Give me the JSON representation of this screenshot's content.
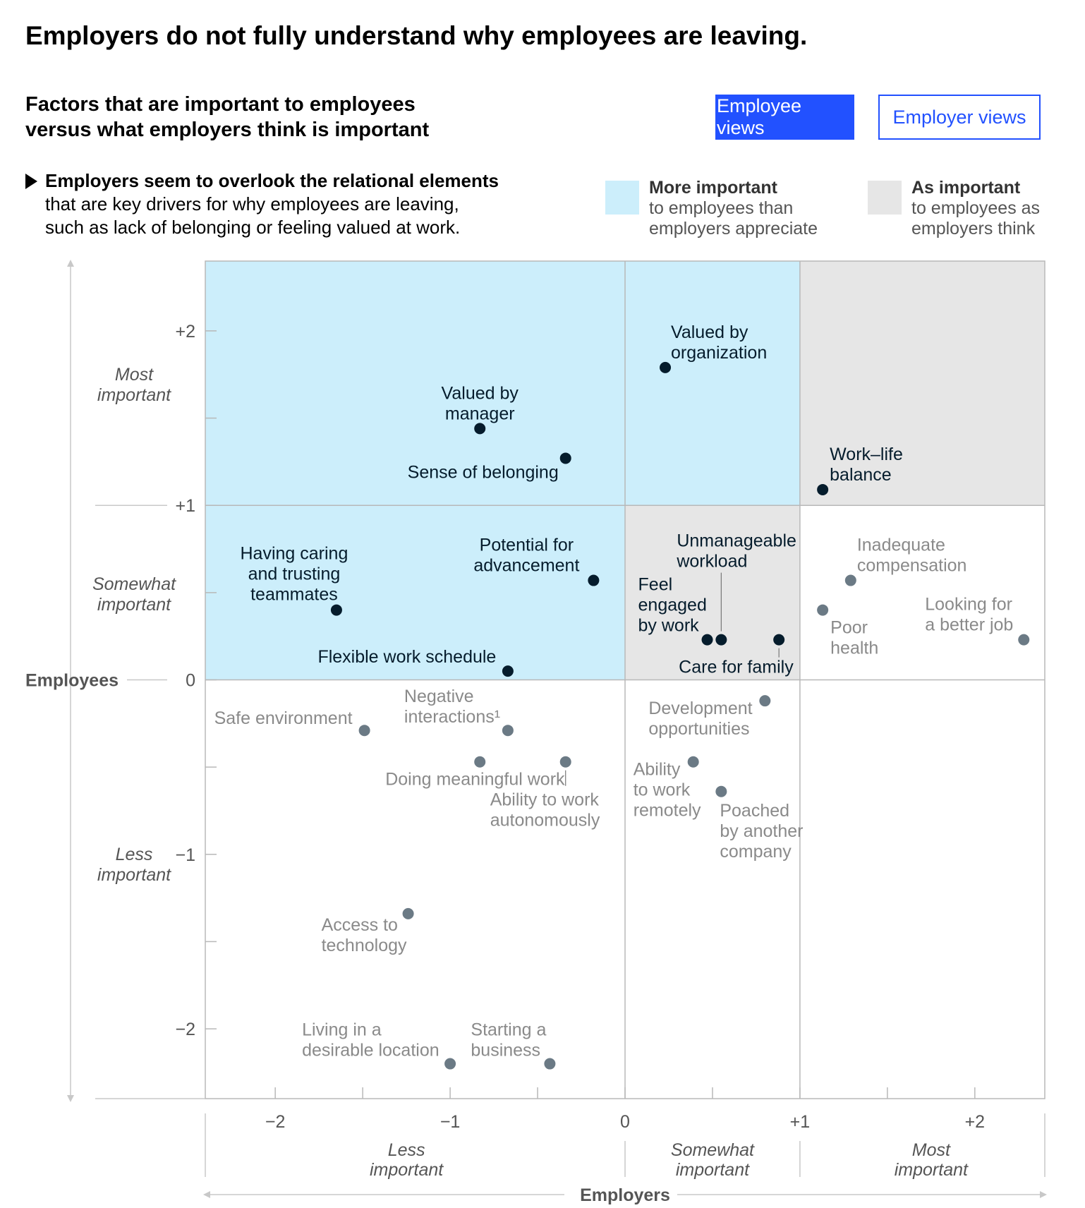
{
  "title": "Employers do not fully understand why employees are leaving.",
  "subtitle": {
    "line1": "Factors that are important to employees",
    "line2": "versus what employers think is important"
  },
  "toggle": {
    "employee_label": "Employee views",
    "employer_label": "Employer views",
    "active": "employee"
  },
  "insight": {
    "headline": "Employers seem to overlook the relational elements",
    "line2": "that are key drivers for why employees are leaving,",
    "line3": "such as lack of belonging or feeling valued at work."
  },
  "legend": {
    "more": {
      "title": "More important",
      "line1": "to employees than",
      "line2": "employers appreciate",
      "color": "#cceefb"
    },
    "as": {
      "title": "As important",
      "line1": "to employees as",
      "line2": "employers think",
      "color": "#e6e6e6"
    }
  },
  "colors": {
    "highlight_dot": "#051c2c",
    "muted_dot": "#6b7a85",
    "highlight_text": "#051c2c",
    "muted_text": "#8a8a8a",
    "grid": "#b8b8b8",
    "axis_text": "#555555"
  },
  "chart_data": {
    "type": "scatter",
    "xlabel": "Employers",
    "ylabel": "Employees",
    "xlim": [
      -2.4,
      2.4
    ],
    "ylim": [
      -2.4,
      2.4
    ],
    "x_ticks": [
      {
        "value": -2,
        "label": "−2"
      },
      {
        "value": -1,
        "label": "−1"
      },
      {
        "value": 0,
        "label": "0"
      },
      {
        "value": 1,
        "label": "+1"
      },
      {
        "value": 2,
        "label": "+2"
      }
    ],
    "y_ticks": [
      {
        "value": 2,
        "label": "+2"
      },
      {
        "value": 1,
        "label": "+1"
      },
      {
        "value": 0,
        "label": "0"
      },
      {
        "value": -1,
        "label": "−1"
      },
      {
        "value": -2,
        "label": "−2"
      }
    ],
    "x_categories": [
      {
        "line1": "Less",
        "line2": "important",
        "center": -1.25
      },
      {
        "line1": "Somewhat",
        "line2": "important",
        "center": 0.5
      },
      {
        "line1": "Most",
        "line2": "important",
        "center": 1.75
      }
    ],
    "y_categories": [
      {
        "line1": "Most",
        "line2": "important",
        "center": 1.7
      },
      {
        "line1": "Somewhat",
        "line2": "important",
        "center": 0.5
      },
      {
        "line1": "Less",
        "line2": "important",
        "center": -1.05
      }
    ],
    "regions": [
      {
        "x0": -2.4,
        "x1": 0,
        "y0": 0,
        "y1": 2.4,
        "kind": "more"
      },
      {
        "x0": 0,
        "x1": 1,
        "y0": 1,
        "y1": 2.4,
        "kind": "more"
      },
      {
        "x0": 0,
        "x1": 1,
        "y0": 0,
        "y1": 1,
        "kind": "as"
      },
      {
        "x0": 1,
        "x1": 2.4,
        "y0": 1,
        "y1": 2.4,
        "kind": "as"
      }
    ],
    "points": [
      {
        "label": [
          "Valued by",
          "organization"
        ],
        "x": 0.23,
        "y": 1.79,
        "highlight": true
      },
      {
        "label": [
          "Valued by",
          "manager"
        ],
        "x": -0.83,
        "y": 1.44,
        "highlight": true
      },
      {
        "label": [
          "Sense of belonging"
        ],
        "x": -0.34,
        "y": 1.27,
        "highlight": true
      },
      {
        "label": [
          "Work–life",
          "balance"
        ],
        "x": 1.13,
        "y": 1.09,
        "highlight": true
      },
      {
        "label": [
          "Potential for",
          "advancement"
        ],
        "x": -0.18,
        "y": 0.57,
        "highlight": true
      },
      {
        "label": [
          "Having caring",
          "and trusting",
          "teammates"
        ],
        "x": -1.65,
        "y": 0.4,
        "highlight": true
      },
      {
        "label": [
          "Flexible work schedule"
        ],
        "x": -0.67,
        "y": 0.05,
        "highlight": true
      },
      {
        "label": [
          "Unmanageable",
          "workload"
        ],
        "x": 0.55,
        "y": 0.23,
        "highlight": true
      },
      {
        "label": [
          "Feel",
          "engaged",
          "by work"
        ],
        "x": 0.47,
        "y": 0.23,
        "highlight": true
      },
      {
        "label": [
          "Care for family"
        ],
        "x": 0.88,
        "y": 0.23,
        "highlight": true
      },
      {
        "label": [
          "Inadequate",
          "compensation"
        ],
        "x": 1.29,
        "y": 0.57,
        "highlight": false
      },
      {
        "label": [
          "Poor",
          "health"
        ],
        "x": 1.13,
        "y": 0.4,
        "highlight": false
      },
      {
        "label": [
          "Looking for",
          "a better job"
        ],
        "x": 2.28,
        "y": 0.23,
        "highlight": false
      },
      {
        "label": [
          "Safe environment"
        ],
        "x": -1.49,
        "y": -0.29,
        "highlight": false
      },
      {
        "label": [
          "Negative",
          "interactions¹"
        ],
        "x": -0.67,
        "y": -0.29,
        "highlight": false
      },
      {
        "label": [
          "Doing meaningful work"
        ],
        "x": -0.83,
        "y": -0.47,
        "highlight": false
      },
      {
        "label": [
          "Ability to work",
          "autonomously"
        ],
        "x": -0.34,
        "y": -0.47,
        "highlight": false
      },
      {
        "label": [
          "Development",
          "opportunities"
        ],
        "x": 0.8,
        "y": -0.12,
        "highlight": false
      },
      {
        "label": [
          "Ability",
          "to work",
          "remotely"
        ],
        "x": 0.39,
        "y": -0.47,
        "highlight": false
      },
      {
        "label": [
          "Poached",
          "by another",
          "company"
        ],
        "x": 0.55,
        "y": -0.64,
        "highlight": false
      },
      {
        "label": [
          "Access to",
          "technology"
        ],
        "x": -1.24,
        "y": -1.34,
        "highlight": false
      },
      {
        "label": [
          "Living in a",
          "desirable location"
        ],
        "x": -1.0,
        "y": -2.2,
        "highlight": false
      },
      {
        "label": [
          "Starting a",
          "business"
        ],
        "x": -0.43,
        "y": -2.2,
        "highlight": false
      }
    ]
  }
}
